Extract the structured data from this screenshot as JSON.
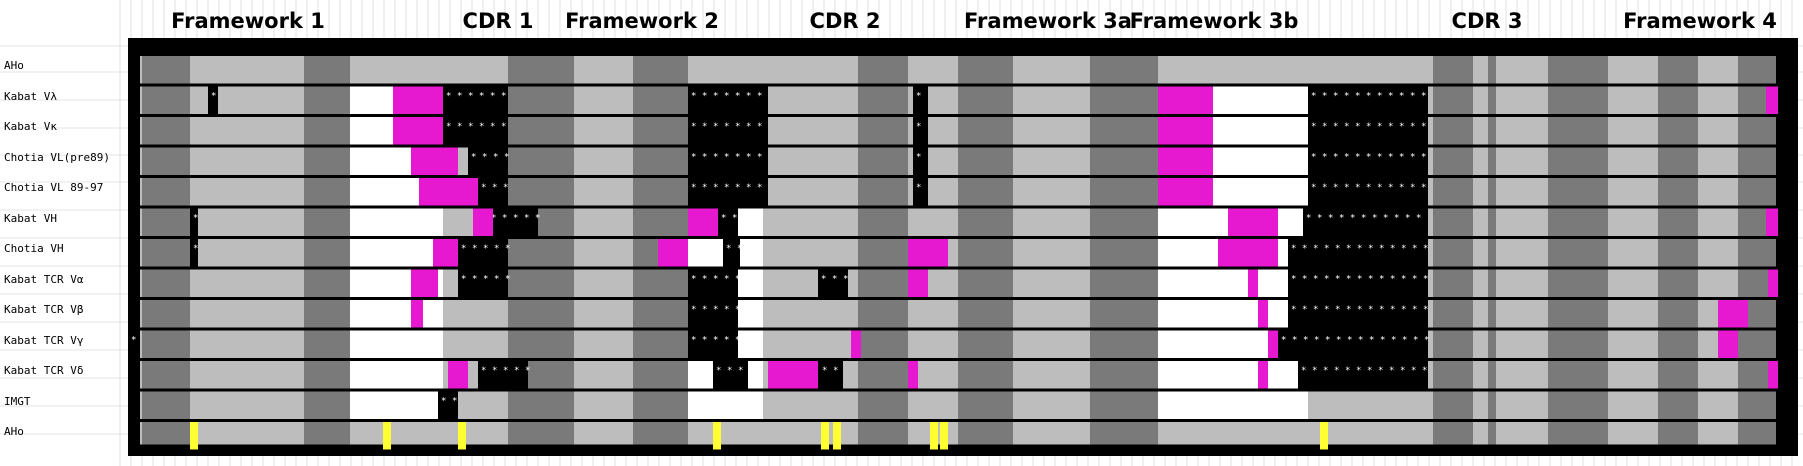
{
  "sections": [
    {
      "label": "Framework 1"
    },
    {
      "label": "CDR 1"
    },
    {
      "label": "Framework 2"
    },
    {
      "label": "CDR 2"
    },
    {
      "label": "Framework 3a"
    },
    {
      "label": "Framework 3b"
    },
    {
      "label": "CDR 3"
    },
    {
      "label": "Framework 4"
    }
  ],
  "rows": [
    {
      "label": "AHo"
    },
    {
      "label": "Kabat Vλ"
    },
    {
      "label": "Kabat Vκ"
    },
    {
      "label": "Chotia VL(pre89)"
    },
    {
      "label": "Chotia VL 89-97"
    },
    {
      "label": "Kabat VH"
    },
    {
      "label": "Chotia VH"
    },
    {
      "label": "Kabat TCR Vα"
    },
    {
      "label": "Kabat TCR Vβ"
    },
    {
      "label": "Kabat TCR Vγ"
    },
    {
      "label": "Kabat TCR Vδ"
    },
    {
      "label": "IMGT"
    },
    {
      "label": "AHo"
    }
  ],
  "colors": {
    "frame": "#000000",
    "framework_light": "#bdbdbd",
    "framework_dark": "#7a7a7a",
    "cdr_cell": "#ffffff",
    "gap": "#000000",
    "insertion": "#e619d1",
    "highlight": "#ffff33",
    "grid_line": "#cccccc"
  },
  "icons": {
    "gap_marker": "asterisk"
  }
}
